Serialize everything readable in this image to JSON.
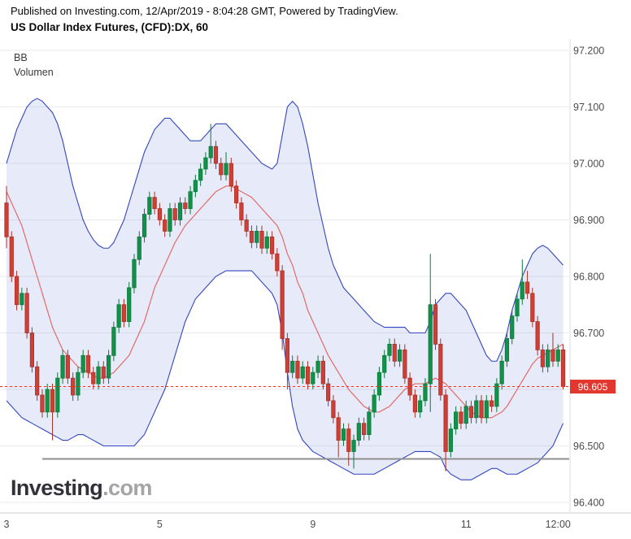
{
  "header": {
    "published": "Published on Investing.com, 12/Apr/2019 - 8:04:28 GMT, Powered by TradingView.",
    "instrument": "US Dollar Index Futures, (CFD):DX, 60"
  },
  "watermark": {
    "brand": "Investing",
    "suffix": ".com"
  },
  "axes": {
    "price_ticks": [
      "97.200",
      "97.100",
      "97.000",
      "96.900",
      "96.800",
      "96.700",
      "96.600",
      "96.500",
      "96.400"
    ],
    "time_ticks": [
      {
        "label": "3",
        "index": 0
      },
      {
        "label": "5",
        "index": 30
      },
      {
        "label": "9",
        "index": 60
      },
      {
        "label": "11",
        "index": 90
      },
      {
        "label": "12:00",
        "index": 108
      }
    ]
  },
  "last_price": {
    "label": "96.605",
    "value": 96.605
  },
  "support_level": 96.477,
  "colors": {
    "up": "#119149",
    "up_border": "#0b7a3c",
    "down": "#cf3f35",
    "down_border": "#a93128",
    "band_line": "#3347c0",
    "band_fill": "rgba(106,122,214,0.16)",
    "band_mid": "#e36a6a",
    "last_price_line": "#ee3124",
    "badge_bg": "#e3362e",
    "support": "#8f8f8f",
    "grid": "#ebebeb",
    "axis_text": "#4c4c4c"
  },
  "chart_data": {
    "type": "candlestick",
    "title": "US Dollar Index Futures, (CFD):DX, 60",
    "interval_minutes": 60,
    "indicators": [
      "BB",
      "Volumen"
    ],
    "ylim": [
      96.4,
      97.2
    ],
    "x_tick_labels": [
      "3",
      "5",
      "9",
      "11",
      "12:00"
    ],
    "last_price": 96.605,
    "support_level": 96.477,
    "ohlc": [
      [
        96.93,
        96.96,
        96.85,
        96.87
      ],
      [
        96.87,
        96.88,
        96.79,
        96.8
      ],
      [
        96.8,
        96.81,
        96.74,
        96.75
      ],
      [
        96.75,
        96.78,
        96.74,
        96.77
      ],
      [
        96.77,
        96.78,
        96.69,
        96.7
      ],
      [
        96.7,
        96.71,
        96.63,
        96.64
      ],
      [
        96.64,
        96.65,
        96.58,
        96.59
      ],
      [
        96.59,
        96.6,
        96.55,
        96.56
      ],
      [
        96.56,
        96.61,
        96.55,
        96.6
      ],
      [
        96.6,
        96.61,
        96.51,
        96.56
      ],
      [
        96.56,
        96.63,
        96.55,
        96.62
      ],
      [
        96.62,
        96.67,
        96.61,
        96.66
      ],
      [
        96.66,
        96.67,
        96.61,
        96.62
      ],
      [
        96.62,
        96.63,
        96.58,
        96.59
      ],
      [
        96.59,
        96.64,
        96.58,
        96.63
      ],
      [
        96.63,
        96.67,
        96.62,
        96.66
      ],
      [
        96.66,
        96.67,
        96.62,
        96.63
      ],
      [
        96.63,
        96.64,
        96.6,
        96.61
      ],
      [
        96.61,
        96.65,
        96.6,
        96.64
      ],
      [
        96.64,
        96.65,
        96.61,
        96.62
      ],
      [
        96.62,
        96.67,
        96.61,
        96.66
      ],
      [
        96.66,
        96.72,
        96.65,
        96.71
      ],
      [
        96.71,
        96.76,
        96.7,
        96.75
      ],
      [
        96.75,
        96.76,
        96.71,
        96.72
      ],
      [
        96.72,
        96.79,
        96.71,
        96.78
      ],
      [
        96.78,
        96.84,
        96.77,
        96.83
      ],
      [
        96.83,
        96.88,
        96.82,
        96.87
      ],
      [
        96.87,
        96.92,
        96.86,
        96.91
      ],
      [
        96.91,
        96.95,
        96.9,
        96.94
      ],
      [
        96.94,
        96.95,
        96.91,
        96.92
      ],
      [
        96.92,
        96.93,
        96.89,
        96.9
      ],
      [
        96.9,
        96.91,
        96.87,
        96.88
      ],
      [
        96.88,
        96.93,
        96.87,
        96.92
      ],
      [
        96.92,
        96.93,
        96.89,
        96.9
      ],
      [
        96.9,
        96.94,
        96.89,
        96.93
      ],
      [
        96.93,
        96.94,
        96.91,
        96.92
      ],
      [
        96.92,
        96.96,
        96.91,
        96.95
      ],
      [
        96.95,
        96.98,
        96.94,
        96.97
      ],
      [
        96.97,
        97.0,
        96.96,
        96.99
      ],
      [
        96.99,
        97.02,
        96.98,
        97.01
      ],
      [
        97.01,
        97.07,
        97.0,
        97.03
      ],
      [
        97.03,
        97.04,
        96.99,
        97.0
      ],
      [
        97.0,
        97.01,
        96.97,
        96.98
      ],
      [
        96.98,
        97.02,
        96.97,
        97.0
      ],
      [
        97.0,
        97.01,
        96.95,
        96.96
      ],
      [
        96.96,
        96.97,
        96.92,
        96.93
      ],
      [
        96.93,
        96.94,
        96.89,
        96.9
      ],
      [
        96.9,
        96.91,
        96.87,
        96.88
      ],
      [
        96.88,
        96.89,
        96.85,
        96.86
      ],
      [
        96.86,
        96.89,
        96.85,
        96.88
      ],
      [
        96.88,
        96.89,
        96.84,
        96.85
      ],
      [
        96.85,
        96.88,
        96.84,
        96.87
      ],
      [
        96.87,
        96.88,
        96.83,
        96.84
      ],
      [
        96.84,
        96.85,
        96.8,
        96.81
      ],
      [
        96.81,
        96.82,
        96.67,
        96.69
      ],
      [
        96.69,
        96.7,
        96.6,
        96.63
      ],
      [
        96.63,
        96.66,
        96.62,
        96.65
      ],
      [
        96.65,
        96.66,
        96.61,
        96.62
      ],
      [
        96.62,
        96.65,
        96.61,
        96.64
      ],
      [
        96.64,
        96.65,
        96.6,
        96.61
      ],
      [
        96.61,
        96.64,
        96.6,
        96.63
      ],
      [
        96.63,
        96.66,
        96.62,
        96.65
      ],
      [
        96.65,
        96.66,
        96.6,
        96.61
      ],
      [
        96.61,
        96.62,
        96.57,
        96.58
      ],
      [
        96.58,
        96.59,
        96.54,
        96.55
      ],
      [
        96.55,
        96.56,
        96.48,
        96.51
      ],
      [
        96.51,
        96.54,
        96.5,
        96.53
      ],
      [
        96.53,
        96.54,
        96.465,
        96.49
      ],
      [
        96.49,
        96.52,
        96.46,
        96.51
      ],
      [
        96.51,
        96.55,
        96.5,
        96.54
      ],
      [
        96.54,
        96.55,
        96.51,
        96.52
      ],
      [
        96.52,
        96.57,
        96.51,
        96.56
      ],
      [
        96.56,
        96.6,
        96.55,
        96.59
      ],
      [
        96.59,
        96.64,
        96.58,
        96.63
      ],
      [
        96.63,
        96.67,
        96.62,
        96.66
      ],
      [
        96.66,
        96.69,
        96.65,
        96.68
      ],
      [
        96.68,
        96.69,
        96.64,
        96.65
      ],
      [
        96.65,
        96.68,
        96.64,
        96.67
      ],
      [
        96.67,
        96.68,
        96.61,
        96.62
      ],
      [
        96.62,
        96.63,
        96.58,
        96.59
      ],
      [
        96.59,
        96.6,
        96.55,
        96.56
      ],
      [
        96.56,
        96.59,
        96.55,
        96.58
      ],
      [
        96.58,
        96.62,
        96.57,
        96.61
      ],
      [
        96.61,
        96.84,
        96.56,
        96.75
      ],
      [
        96.75,
        96.76,
        96.67,
        96.68
      ],
      [
        96.68,
        96.69,
        96.58,
        96.59
      ],
      [
        96.59,
        96.6,
        96.455,
        96.49
      ],
      [
        96.49,
        96.54,
        96.48,
        96.53
      ],
      [
        96.53,
        96.57,
        96.52,
        96.56
      ],
      [
        96.56,
        96.57,
        96.53,
        96.54
      ],
      [
        96.54,
        96.58,
        96.53,
        96.57
      ],
      [
        96.57,
        96.58,
        96.54,
        96.55
      ],
      [
        96.55,
        96.59,
        96.54,
        96.58
      ],
      [
        96.58,
        96.59,
        96.54,
        96.55
      ],
      [
        96.55,
        96.59,
        96.54,
        96.58
      ],
      [
        96.58,
        96.59,
        96.56,
        96.57
      ],
      [
        96.57,
        96.62,
        96.56,
        96.61
      ],
      [
        96.61,
        96.66,
        96.6,
        96.65
      ],
      [
        96.65,
        96.7,
        96.64,
        96.69
      ],
      [
        96.69,
        96.74,
        96.68,
        96.73
      ],
      [
        96.73,
        96.77,
        96.72,
        96.76
      ],
      [
        96.76,
        96.83,
        96.75,
        96.79
      ],
      [
        96.79,
        96.81,
        96.76,
        96.77
      ],
      [
        96.77,
        96.78,
        96.71,
        96.72
      ],
      [
        96.72,
        96.73,
        96.66,
        96.67
      ],
      [
        96.67,
        96.68,
        96.63,
        96.64
      ],
      [
        96.64,
        96.68,
        96.63,
        96.67
      ],
      [
        96.67,
        96.7,
        96.64,
        96.65
      ],
      [
        96.65,
        96.68,
        96.64,
        96.67
      ],
      [
        96.67,
        96.68,
        96.6,
        96.605
      ]
    ],
    "bollinger": {
      "upper": [
        97.0,
        97.03,
        97.06,
        97.08,
        97.1,
        97.11,
        97.115,
        97.11,
        97.1,
        97.09,
        97.07,
        97.04,
        97.0,
        96.96,
        96.93,
        96.9,
        96.88,
        96.865,
        96.855,
        96.85,
        96.85,
        96.86,
        96.88,
        96.9,
        96.93,
        96.96,
        96.99,
        97.02,
        97.04,
        97.06,
        97.07,
        97.08,
        97.08,
        97.07,
        97.06,
        97.05,
        97.04,
        97.04,
        97.04,
        97.05,
        97.06,
        97.07,
        97.07,
        97.07,
        97.06,
        97.05,
        97.04,
        97.03,
        97.02,
        97.01,
        97.0,
        96.995,
        96.99,
        97.0,
        97.05,
        97.1,
        97.11,
        97.1,
        97.07,
        97.03,
        96.98,
        96.93,
        96.89,
        96.85,
        96.82,
        96.8,
        96.78,
        96.77,
        96.76,
        96.75,
        96.74,
        96.73,
        96.72,
        96.715,
        96.71,
        96.71,
        96.71,
        96.71,
        96.71,
        96.7,
        96.7,
        96.7,
        96.7,
        96.72,
        96.75,
        96.76,
        96.77,
        96.77,
        96.76,
        96.75,
        96.74,
        96.72,
        96.7,
        96.68,
        96.66,
        96.65,
        96.65,
        96.67,
        96.7,
        96.74,
        96.77,
        96.8,
        96.82,
        96.84,
        96.85,
        96.855,
        96.85,
        96.84,
        96.83,
        96.82
      ],
      "middle": [
        96.95,
        96.93,
        96.91,
        96.89,
        96.86,
        96.83,
        96.8,
        96.77,
        96.74,
        96.71,
        96.69,
        96.67,
        96.66,
        96.65,
        96.64,
        96.635,
        96.63,
        96.625,
        96.62,
        96.62,
        96.625,
        96.63,
        96.64,
        96.65,
        96.66,
        96.68,
        96.7,
        96.72,
        96.75,
        96.78,
        96.8,
        96.82,
        96.84,
        96.86,
        96.875,
        96.89,
        96.9,
        96.91,
        96.92,
        96.93,
        96.94,
        96.95,
        96.955,
        96.96,
        96.96,
        96.955,
        96.95,
        96.945,
        96.94,
        96.93,
        96.92,
        96.91,
        96.9,
        96.89,
        96.87,
        96.84,
        96.82,
        96.79,
        96.77,
        96.74,
        96.72,
        96.7,
        96.68,
        96.66,
        96.645,
        96.63,
        96.615,
        96.6,
        96.59,
        96.58,
        96.57,
        96.565,
        96.56,
        96.56,
        96.565,
        96.57,
        96.58,
        96.59,
        96.6,
        96.605,
        96.61,
        96.61,
        96.61,
        96.615,
        96.62,
        96.615,
        96.61,
        96.6,
        96.59,
        96.58,
        96.57,
        96.56,
        96.555,
        96.55,
        96.55,
        96.55,
        96.555,
        96.56,
        96.57,
        96.585,
        96.6,
        96.615,
        96.63,
        96.645,
        96.655,
        96.66,
        96.665,
        96.67,
        96.675,
        96.68
      ],
      "lower": [
        96.58,
        96.57,
        96.56,
        96.55,
        96.545,
        96.54,
        96.535,
        96.53,
        96.525,
        96.52,
        96.515,
        96.51,
        96.51,
        96.515,
        96.52,
        96.52,
        96.515,
        96.51,
        96.505,
        96.5,
        96.5,
        96.5,
        96.5,
        96.5,
        96.5,
        96.5,
        96.51,
        96.52,
        96.54,
        96.56,
        96.58,
        96.6,
        96.63,
        96.66,
        96.69,
        96.72,
        96.74,
        96.76,
        96.77,
        96.78,
        96.79,
        96.8,
        96.805,
        96.81,
        96.81,
        96.81,
        96.81,
        96.81,
        96.81,
        96.8,
        96.79,
        96.78,
        96.77,
        96.75,
        96.7,
        96.63,
        96.57,
        96.53,
        96.51,
        96.5,
        96.49,
        96.485,
        96.48,
        96.475,
        96.47,
        96.465,
        96.46,
        96.455,
        96.45,
        96.45,
        96.45,
        96.45,
        96.45,
        96.455,
        96.46,
        96.465,
        96.47,
        96.475,
        96.48,
        96.485,
        96.49,
        96.49,
        96.49,
        96.49,
        96.485,
        96.48,
        96.46,
        96.45,
        96.445,
        96.44,
        96.44,
        96.44,
        96.445,
        96.45,
        96.455,
        96.46,
        96.46,
        96.455,
        96.45,
        96.45,
        96.45,
        96.455,
        96.46,
        96.465,
        96.47,
        96.48,
        96.49,
        96.5,
        96.52,
        96.54
      ]
    }
  }
}
